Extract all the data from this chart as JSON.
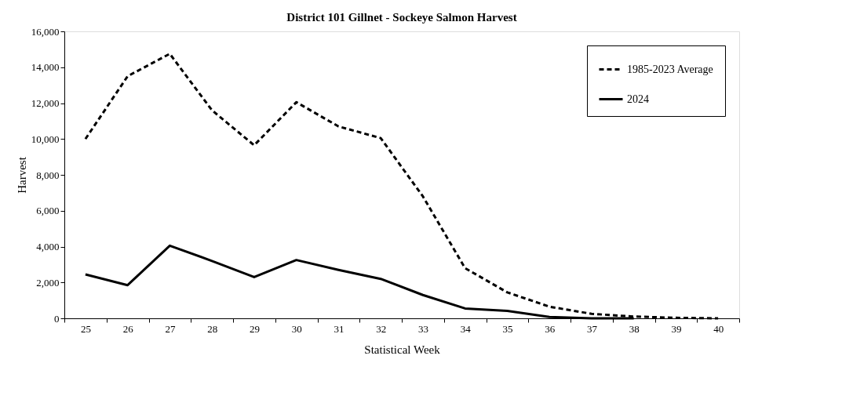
{
  "chart_data": {
    "type": "line",
    "title": "District 101 Gillnet  - Sockeye Salmon Harvest",
    "xlabel": "Statistical Week",
    "ylabel": "Harvest",
    "categories": [
      "25",
      "26",
      "27",
      "28",
      "29",
      "30",
      "31",
      "32",
      "33",
      "34",
      "35",
      "36",
      "37",
      "38",
      "39",
      "40"
    ],
    "series": [
      {
        "name": "1985-2023 Average",
        "color": "#000000",
        "line_style": "dashed",
        "values": [
          10000,
          13500,
          14750,
          11600,
          9650,
          12050,
          10700,
          10050,
          6800,
          2800,
          1450,
          650,
          250,
          100,
          30,
          0
        ]
      },
      {
        "name": "2024",
        "color": "#000000",
        "line_style": "solid",
        "values": [
          2450,
          1850,
          4050,
          3200,
          2300,
          3250,
          2700,
          2200,
          1300,
          550,
          420,
          80,
          0,
          0,
          null,
          null
        ]
      }
    ],
    "ylim": [
      0,
      16000
    ],
    "yticks": [
      0,
      {
        "value": 2000,
        "label": "2,000"
      },
      {
        "value": 4000,
        "label": "4,000"
      },
      {
        "value": 6000,
        "label": "6,000"
      },
      {
        "value": 8000,
        "label": "8,000"
      },
      {
        "value": 10000,
        "label": "10,000"
      },
      {
        "value": 12000,
        "label": "12,000"
      },
      {
        "value": 14000,
        "label": "14,000"
      },
      {
        "value": 16000,
        "label": "16,000"
      }
    ],
    "grid": false,
    "legend": "top right",
    "marker": "none"
  }
}
